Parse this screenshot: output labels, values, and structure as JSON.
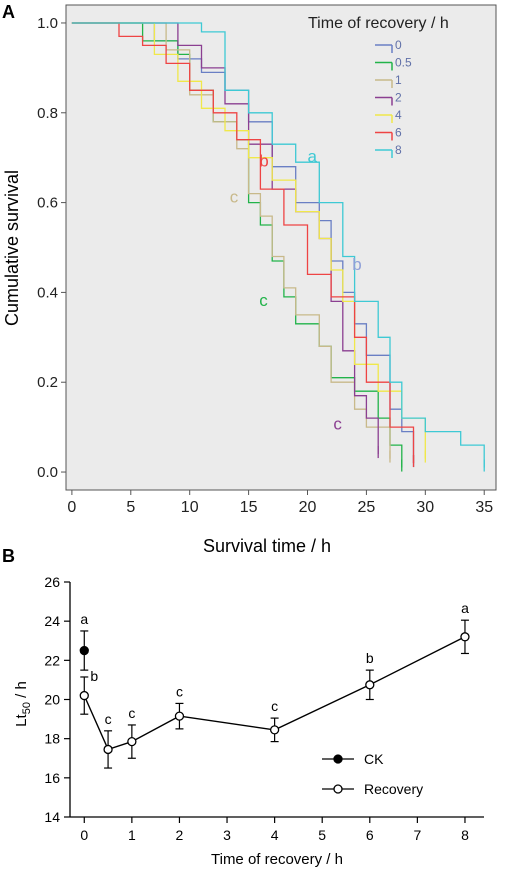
{
  "panel_a": {
    "letter": "A",
    "chart_data": {
      "type": "line",
      "ylabel": "Cumulative survival",
      "xlabel": "Survival time / h",
      "xlim": [
        -0.5,
        36
      ],
      "ylim": [
        -0.04,
        1.04
      ],
      "x_ticks": [
        "0",
        "5",
        "10",
        "15",
        "20",
        "25",
        "30",
        "35"
      ],
      "y_ticks": [
        "0.0",
        "0.2",
        "0.4",
        "0.6",
        "0.8",
        "1.0"
      ],
      "grid": false,
      "legend_title": "Time of recovery / h",
      "legend_position": "top-right",
      "series": [
        {
          "name": "0",
          "color": "#6a7fc4",
          "points": [
            [
              0,
              1
            ],
            [
              7,
              1
            ],
            [
              7,
              0.96
            ],
            [
              9,
              0.96
            ],
            [
              9,
              0.92
            ],
            [
              11,
              0.92
            ],
            [
              11,
              0.89
            ],
            [
              13,
              0.89
            ],
            [
              13,
              0.85
            ],
            [
              15,
              0.85
            ],
            [
              15,
              0.78
            ],
            [
              17,
              0.78
            ],
            [
              17,
              0.68
            ],
            [
              19,
              0.68
            ],
            [
              19,
              0.6
            ],
            [
              21,
              0.6
            ],
            [
              21,
              0.56
            ],
            [
              22,
              0.56
            ],
            [
              22,
              0.47
            ],
            [
              23,
              0.47
            ],
            [
              23,
              0.4
            ],
            [
              24,
              0.4
            ],
            [
              24,
              0.33
            ],
            [
              25,
              0.33
            ],
            [
              25,
              0.26
            ],
            [
              27,
              0.26
            ],
            [
              27,
              0.14
            ],
            [
              28,
              0.14
            ],
            [
              28,
              0.09
            ],
            [
              29,
              0.09
            ],
            [
              29,
              0.02
            ]
          ]
        },
        {
          "name": "0.5",
          "color": "#22b34a",
          "points": [
            [
              0,
              1
            ],
            [
              6,
              1
            ],
            [
              6,
              0.96
            ],
            [
              9,
              0.96
            ],
            [
              9,
              0.93
            ],
            [
              10,
              0.93
            ],
            [
              10,
              0.85
            ],
            [
              12,
              0.85
            ],
            [
              12,
              0.78
            ],
            [
              14,
              0.78
            ],
            [
              14,
              0.74
            ],
            [
              15,
              0.74
            ],
            [
              15,
              0.6
            ],
            [
              16,
              0.6
            ],
            [
              16,
              0.55
            ],
            [
              17,
              0.55
            ],
            [
              17,
              0.47
            ],
            [
              18,
              0.47
            ],
            [
              18,
              0.39
            ],
            [
              19,
              0.39
            ],
            [
              19,
              0.33
            ],
            [
              21,
              0.33
            ],
            [
              21,
              0.28
            ],
            [
              22,
              0.28
            ],
            [
              22,
              0.21
            ],
            [
              24,
              0.21
            ],
            [
              24,
              0.18
            ],
            [
              26,
              0.18
            ],
            [
              26,
              0.12
            ],
            [
              27,
              0.12
            ],
            [
              27,
              0.06
            ],
            [
              28,
              0.06
            ],
            [
              28,
              0.01
            ]
          ]
        },
        {
          "name": "1",
          "color": "#c8b98a",
          "points": [
            [
              0,
              1
            ],
            [
              8,
              1
            ],
            [
              8,
              0.94
            ],
            [
              10,
              0.94
            ],
            [
              10,
              0.84
            ],
            [
              12,
              0.84
            ],
            [
              12,
              0.78
            ],
            [
              14,
              0.78
            ],
            [
              14,
              0.72
            ],
            [
              15,
              0.72
            ],
            [
              15,
              0.62
            ],
            [
              16,
              0.62
            ],
            [
              16,
              0.57
            ],
            [
              17,
              0.57
            ],
            [
              17,
              0.48
            ],
            [
              18,
              0.48
            ],
            [
              18,
              0.41
            ],
            [
              19,
              0.41
            ],
            [
              19,
              0.35
            ],
            [
              21,
              0.35
            ],
            [
              21,
              0.28
            ],
            [
              22,
              0.28
            ],
            [
              22,
              0.2
            ],
            [
              24,
              0.2
            ],
            [
              24,
              0.14
            ],
            [
              25,
              0.14
            ],
            [
              25,
              0.1
            ],
            [
              27,
              0.1
            ],
            [
              27,
              0.03
            ]
          ]
        },
        {
          "name": "2",
          "color": "#8b3f91",
          "points": [
            [
              0,
              1
            ],
            [
              9,
              1
            ],
            [
              9,
              0.95
            ],
            [
              11,
              0.95
            ],
            [
              11,
              0.9
            ],
            [
              13,
              0.9
            ],
            [
              13,
              0.82
            ],
            [
              15,
              0.82
            ],
            [
              15,
              0.73
            ],
            [
              17,
              0.73
            ],
            [
              17,
              0.63
            ],
            [
              19,
              0.63
            ],
            [
              19,
              0.58
            ],
            [
              21,
              0.58
            ],
            [
              21,
              0.52
            ],
            [
              22,
              0.52
            ],
            [
              22,
              0.38
            ],
            [
              23,
              0.38
            ],
            [
              23,
              0.27
            ],
            [
              24,
              0.27
            ],
            [
              24,
              0.17
            ],
            [
              25,
              0.17
            ],
            [
              25,
              0.12
            ],
            [
              26,
              0.12
            ],
            [
              26,
              0.04
            ]
          ]
        },
        {
          "name": "4",
          "color": "#f0e84a",
          "points": [
            [
              0,
              1
            ],
            [
              7,
              1
            ],
            [
              7,
              0.93
            ],
            [
              9,
              0.93
            ],
            [
              9,
              0.87
            ],
            [
              11,
              0.87
            ],
            [
              11,
              0.81
            ],
            [
              13,
              0.81
            ],
            [
              13,
              0.76
            ],
            [
              15,
              0.76
            ],
            [
              15,
              0.7
            ],
            [
              17,
              0.7
            ],
            [
              17,
              0.65
            ],
            [
              19,
              0.65
            ],
            [
              19,
              0.58
            ],
            [
              21,
              0.58
            ],
            [
              21,
              0.52
            ],
            [
              22,
              0.52
            ],
            [
              22,
              0.45
            ],
            [
              23,
              0.45
            ],
            [
              23,
              0.38
            ],
            [
              24,
              0.38
            ],
            [
              24,
              0.24
            ],
            [
              26,
              0.24
            ],
            [
              26,
              0.18
            ],
            [
              28,
              0.18
            ],
            [
              28,
              0.12
            ],
            [
              30,
              0.12
            ],
            [
              30,
              0.03
            ]
          ]
        },
        {
          "name": "6",
          "color": "#ee4444",
          "points": [
            [
              0,
              1
            ],
            [
              4,
              1
            ],
            [
              4,
              0.97
            ],
            [
              6,
              0.97
            ],
            [
              6,
              0.95
            ],
            [
              8,
              0.95
            ],
            [
              8,
              0.91
            ],
            [
              10,
              0.91
            ],
            [
              10,
              0.85
            ],
            [
              12,
              0.85
            ],
            [
              12,
              0.8
            ],
            [
              14,
              0.8
            ],
            [
              14,
              0.74
            ],
            [
              16,
              0.74
            ],
            [
              16,
              0.63
            ],
            [
              18,
              0.63
            ],
            [
              18,
              0.55
            ],
            [
              20,
              0.55
            ],
            [
              20,
              0.44
            ],
            [
              22,
              0.44
            ],
            [
              22,
              0.39
            ],
            [
              24,
              0.39
            ],
            [
              24,
              0.3
            ],
            [
              25,
              0.3
            ],
            [
              25,
              0.2
            ],
            [
              27,
              0.2
            ],
            [
              27,
              0.1
            ],
            [
              29,
              0.1
            ],
            [
              29,
              0.02
            ]
          ]
        },
        {
          "name": "8",
          "color": "#3ec9d4",
          "points": [
            [
              0,
              1
            ],
            [
              11,
              1
            ],
            [
              11,
              0.98
            ],
            [
              13,
              0.98
            ],
            [
              13,
              0.85
            ],
            [
              15,
              0.85
            ],
            [
              15,
              0.8
            ],
            [
              17,
              0.8
            ],
            [
              17,
              0.73
            ],
            [
              19,
              0.73
            ],
            [
              19,
              0.69
            ],
            [
              21,
              0.69
            ],
            [
              21,
              0.6
            ],
            [
              23,
              0.6
            ],
            [
              23,
              0.48
            ],
            [
              24,
              0.48
            ],
            [
              24,
              0.38
            ],
            [
              26,
              0.38
            ],
            [
              26,
              0.3
            ],
            [
              27,
              0.3
            ],
            [
              27,
              0.2
            ],
            [
              28,
              0.2
            ],
            [
              28,
              0.12
            ],
            [
              30,
              0.12
            ],
            [
              30,
              0.09
            ],
            [
              33,
              0.09
            ],
            [
              33,
              0.06
            ],
            [
              35,
              0.06
            ],
            [
              35,
              0.01
            ]
          ]
        }
      ],
      "annotations": [
        {
          "text": "a",
          "x": 20,
          "y": 0.69,
          "color": "#3ec9d4"
        },
        {
          "text": "b",
          "x": 15.9,
          "y": 0.68,
          "color": "#ee4444"
        },
        {
          "text": "c",
          "x": 13.4,
          "y": 0.6,
          "color": "#c8b98a"
        },
        {
          "text": "b",
          "x": 23.8,
          "y": 0.45,
          "color": "#8fa0d8"
        },
        {
          "text": "c",
          "x": 15.9,
          "y": 0.37,
          "color": "#22b34a"
        },
        {
          "text": "c",
          "x": 22.2,
          "y": 0.095,
          "color": "#8b3f91"
        }
      ]
    }
  },
  "panel_b": {
    "letter": "B",
    "chart_data": {
      "type": "line",
      "ylabel": "Lt",
      "ylabel_sub": "50",
      "ylabel_unit": " / h",
      "xlabel": "Time of recovery / h",
      "xlim": [
        -0.3,
        8.4
      ],
      "ylim": [
        14,
        26
      ],
      "x_ticks": [
        "0",
        "1",
        "2",
        "3",
        "4",
        "5",
        "6",
        "7",
        "8"
      ],
      "y_ticks": [
        "14",
        "16",
        "18",
        "20",
        "22",
        "24",
        "26"
      ],
      "grid": false,
      "legend_position": "bottom-right",
      "series": [
        {
          "name": "CK",
          "marker": "filled-circle",
          "x": [
            0
          ],
          "y": [
            22.5
          ],
          "err": [
            1.0
          ],
          "labels": [
            "a"
          ]
        },
        {
          "name": "Recovery",
          "marker": "open-circle",
          "x": [
            0,
            0.5,
            1,
            2,
            4,
            6,
            8
          ],
          "y": [
            20.2,
            17.45,
            17.85,
            19.15,
            18.45,
            20.75,
            23.2
          ],
          "err": [
            0.95,
            0.95,
            0.85,
            0.65,
            0.6,
            0.75,
            0.85
          ],
          "labels": [
            "b",
            "c",
            "c",
            "c",
            "c",
            "b",
            "a"
          ]
        }
      ]
    }
  }
}
